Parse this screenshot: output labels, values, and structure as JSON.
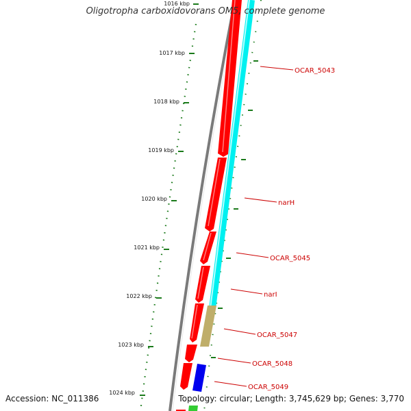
{
  "title": "Oligotropha carboxidovorans OM5, complete genome",
  "accession": "Accession: NC_011386",
  "topology": "Topology: circular; Length: 3,745,629 bp; Genes: 3,770",
  "colors": {
    "backbone": "#7a7a7a",
    "gc_dots": "#1a7a1a",
    "ticks": "#1a7a1a",
    "forward_strand": "#ff0000",
    "reverse_strand": "#00ffff",
    "tan_feature": "#bfae6a",
    "blue_feature": "#0000ee",
    "green_feature": "#33cc33",
    "label": "#cc0000"
  },
  "kbp_labels": [
    "1016 kbp",
    "1017 kbp",
    "1018 kbp",
    "1019 kbp",
    "1020 kbp",
    "1021 kbp",
    "1022 kbp",
    "1023 kbp",
    "1024 kbp"
  ],
  "gene_labels": [
    "OCAR_5043",
    "narH",
    "OCAR_5045",
    "narI",
    "OCAR_5047",
    "OCAR_5048",
    "OCAR_5049"
  ]
}
